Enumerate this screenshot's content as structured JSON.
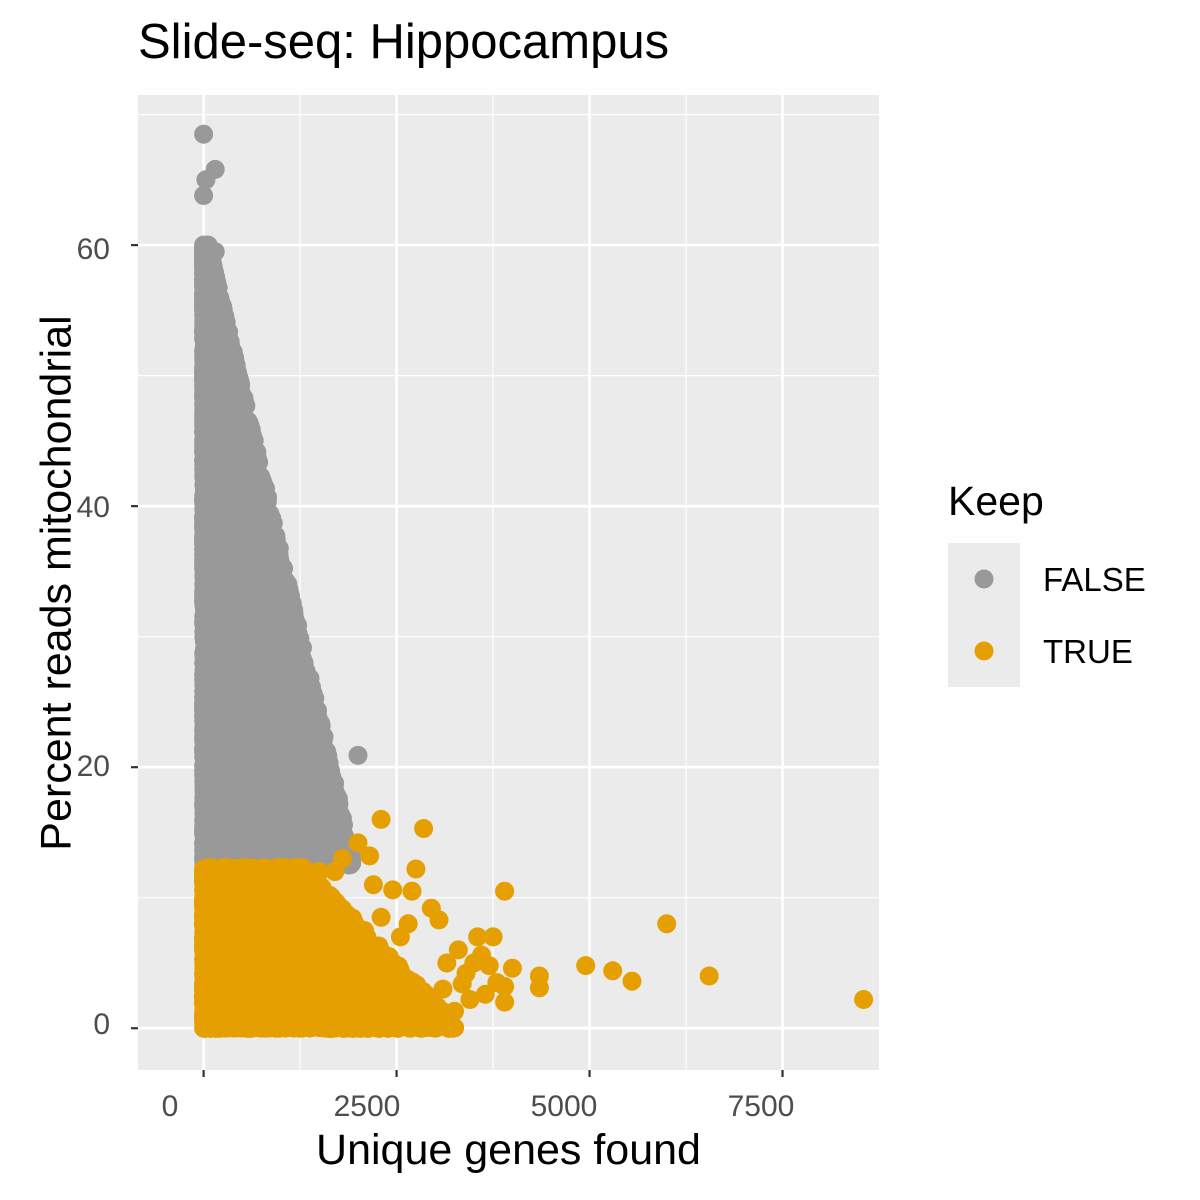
{
  "chart_data": {
    "type": "scatter",
    "title": "Slide-seq: Hippocampus",
    "xlabel": "Unique genes found",
    "ylabel": "Percent reads mitochondrial",
    "xlim": [
      -850,
      8750
    ],
    "ylim": [
      -3.2,
      71.5
    ],
    "x_ticks": [
      0,
      2500,
      5000,
      7500
    ],
    "x_tick_labels": [
      "0",
      "2500",
      "5000",
      "7500"
    ],
    "y_ticks": [
      0,
      20,
      40,
      60
    ],
    "y_tick_labels": [
      "0",
      "20",
      "40",
      "60"
    ],
    "grid": true,
    "legend": {
      "title": "Keep",
      "placement": "right",
      "entries": [
        {
          "label": "FALSE",
          "color": "#999999"
        },
        {
          "label": "TRUE",
          "color": "#E69F00"
        }
      ]
    },
    "series": [
      {
        "name": "FALSE",
        "color": "#999999",
        "points": [
          [
            0,
            68.5
          ],
          [
            30,
            65
          ],
          [
            150,
            65.8
          ],
          [
            0,
            63.8
          ],
          [
            0,
            60
          ],
          [
            60,
            60
          ],
          [
            150,
            59.5
          ],
          [
            20,
            58
          ],
          [
            40,
            55.5
          ],
          [
            60,
            52
          ],
          [
            110,
            54.2
          ],
          [
            150,
            52
          ],
          [
            120,
            49
          ],
          [
            200,
            50
          ],
          [
            250,
            48
          ],
          [
            300,
            47.5
          ],
          [
            180,
            46
          ],
          [
            220,
            44
          ],
          [
            260,
            42
          ],
          [
            300,
            40
          ],
          [
            350,
            39
          ],
          [
            380,
            37.5
          ],
          [
            400,
            36.5
          ],
          [
            420,
            35
          ],
          [
            450,
            33
          ],
          [
            480,
            30.5
          ],
          [
            500,
            29.5
          ],
          [
            550,
            28
          ],
          [
            600,
            26.5
          ],
          [
            650,
            25.5
          ],
          [
            700,
            24
          ],
          [
            750,
            23
          ],
          [
            800,
            22
          ],
          [
            850,
            21.5
          ],
          [
            900,
            20.5
          ],
          [
            950,
            19.8
          ],
          [
            1000,
            19.5
          ],
          [
            1050,
            18.5
          ],
          [
            1100,
            17.8
          ],
          [
            1200,
            18.8
          ],
          [
            1250,
            17.2
          ],
          [
            1300,
            16.5
          ],
          [
            1400,
            25
          ],
          [
            1550,
            18.4
          ],
          [
            1550,
            15.8
          ],
          [
            1750,
            14.5
          ],
          [
            1600,
            13.8
          ],
          [
            2000,
            20.9
          ],
          [
            1200,
            13.5
          ],
          [
            1000,
            14.5
          ],
          [
            800,
            15
          ],
          [
            600,
            16
          ],
          [
            400,
            17
          ],
          [
            300,
            19
          ],
          [
            200,
            21
          ],
          [
            100,
            23
          ],
          [
            50,
            26
          ],
          [
            30,
            30
          ],
          [
            20,
            35
          ],
          [
            10,
            40
          ],
          [
            0,
            45
          ],
          [
            0,
            50
          ],
          [
            500,
            14
          ],
          [
            700,
            14.5
          ],
          [
            900,
            13.5
          ],
          [
            1100,
            14
          ],
          [
            1300,
            15
          ],
          [
            1450,
            13.2
          ],
          [
            1650,
            13.5
          ],
          [
            1850,
            13.5
          ],
          [
            350,
            15.5
          ],
          [
            250,
            14
          ],
          [
            150,
            13.2
          ],
          [
            80,
            12.5
          ],
          [
            450,
            12.8
          ]
        ],
        "dense_region": {
          "x_max_at_y_min": 1950,
          "x_max_at_y_max": 60,
          "y_min": 12.5,
          "y_max": 60,
          "count": 9000
        }
      },
      {
        "name": "TRUE",
        "color": "#E69F00",
        "points": [
          [
            8550,
            2.2
          ],
          [
            6550,
            4
          ],
          [
            6000,
            8
          ],
          [
            5550,
            3.6
          ],
          [
            5300,
            4.4
          ],
          [
            4950,
            4.8
          ],
          [
            4350,
            4
          ],
          [
            4350,
            3.1
          ],
          [
            3900,
            10.5
          ],
          [
            3900,
            3.2
          ],
          [
            3900,
            2
          ],
          [
            3750,
            7
          ],
          [
            3650,
            2.6
          ],
          [
            3600,
            5.6
          ],
          [
            3550,
            7
          ],
          [
            3500,
            5
          ],
          [
            3400,
            4.2
          ],
          [
            3300,
            6
          ],
          [
            3250,
            1.3
          ],
          [
            3150,
            5
          ],
          [
            3050,
            8.3
          ],
          [
            2950,
            9.2
          ],
          [
            2850,
            15.3
          ],
          [
            2800,
            2.5
          ],
          [
            2750,
            12.2
          ],
          [
            2700,
            10.5
          ],
          [
            2650,
            8
          ],
          [
            2550,
            7
          ],
          [
            2450,
            10.6
          ],
          [
            2300,
            16
          ],
          [
            2300,
            8.5
          ],
          [
            2200,
            11
          ],
          [
            2150,
            13.2
          ],
          [
            2000,
            14.2
          ],
          [
            1800,
            13
          ],
          [
            1700,
            12
          ],
          [
            1900,
            7.5
          ],
          [
            1500,
            12
          ],
          [
            1600,
            1.2
          ],
          [
            1400,
            1.1
          ],
          [
            1000,
            1.2
          ],
          [
            600,
            1.0
          ],
          [
            200,
            0.4
          ],
          [
            0,
            0
          ],
          [
            100,
            0.5
          ],
          [
            3100,
            3
          ],
          [
            3350,
            3.4
          ],
          [
            2600,
            3.8
          ],
          [
            2900,
            1.6
          ],
          [
            4000,
            4.6
          ],
          [
            3700,
            4.8
          ],
          [
            3800,
            3.5
          ],
          [
            3450,
            2.2
          ],
          [
            2400,
            1.4
          ],
          [
            2100,
            1.5
          ],
          [
            1800,
            1.6
          ]
        ],
        "dense_region": {
          "x_max_at_y_min": 3300,
          "x_max_at_y_max": 1300,
          "y_min": 0,
          "y_max": 12.3,
          "count": 18000
        }
      }
    ]
  }
}
